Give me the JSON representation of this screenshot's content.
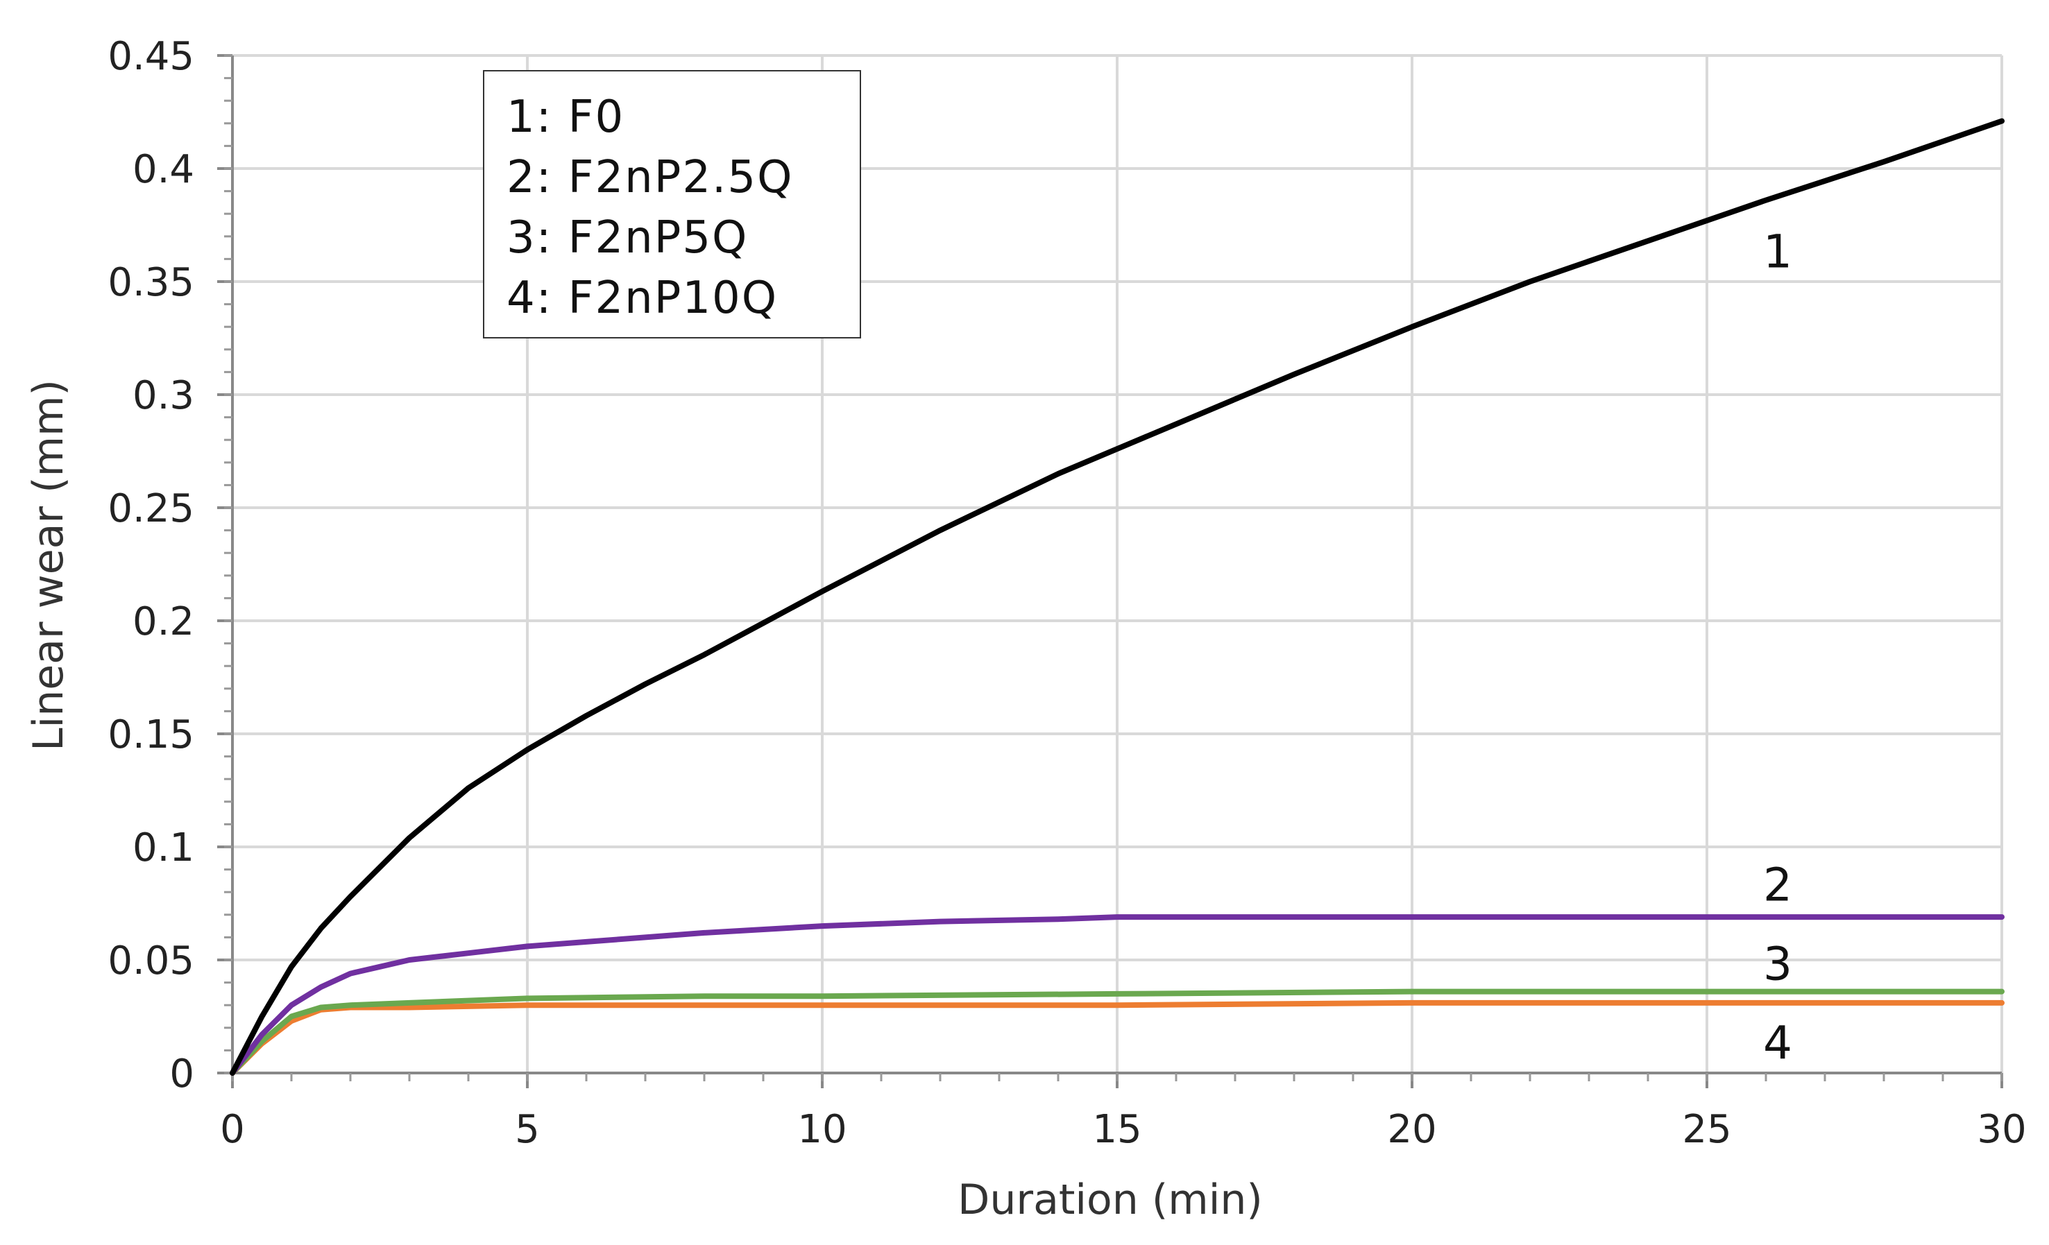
{
  "chart_data": {
    "type": "line",
    "title": "",
    "xlabel": "Duration (min)",
    "ylabel": "Linear wear (mm)",
    "xlim": [
      0,
      30
    ],
    "ylim": [
      0,
      0.45
    ],
    "xticks": [
      "0",
      "5",
      "10",
      "15",
      "20",
      "25",
      "30"
    ],
    "yticks": [
      "0",
      "0.05",
      "0.1",
      "0.15",
      "0.2",
      "0.25",
      "0.3",
      "0.35",
      "0.4",
      "0.45"
    ],
    "grid": true,
    "legend": {
      "placement": "top-left",
      "entries": [
        "1: F0",
        "2: F2nP2.5Q",
        "3: F2nP5Q",
        "4: F2nP10Q"
      ]
    },
    "series": [
      {
        "name": "1: F0",
        "label": "1",
        "color": "#000000",
        "x": [
          0,
          0.5,
          1,
          1.5,
          2,
          3,
          4,
          5,
          6,
          7,
          8,
          9,
          10,
          12,
          14,
          15,
          16,
          18,
          20,
          22,
          24,
          26,
          28,
          30
        ],
        "y": [
          0,
          0.025,
          0.047,
          0.064,
          0.078,
          0.104,
          0.126,
          0.143,
          0.158,
          0.172,
          0.185,
          0.199,
          0.213,
          0.24,
          0.265,
          0.276,
          0.287,
          0.309,
          0.33,
          0.35,
          0.368,
          0.386,
          0.403,
          0.421
        ]
      },
      {
        "name": "2: F2nP2.5Q",
        "label": "2",
        "color": "#7030a0",
        "x": [
          0,
          0.5,
          1,
          1.5,
          2,
          2.5,
          3,
          4,
          5,
          6,
          7,
          8,
          10,
          12,
          14,
          15,
          16,
          18,
          20,
          22,
          24,
          26,
          28,
          30
        ],
        "y": [
          0,
          0.017,
          0.03,
          0.038,
          0.044,
          0.047,
          0.05,
          0.053,
          0.056,
          0.058,
          0.06,
          0.062,
          0.065,
          0.067,
          0.068,
          0.069,
          0.069,
          0.069,
          0.069,
          0.069,
          0.069,
          0.069,
          0.069,
          0.069
        ]
      },
      {
        "name": "3: F2nP5Q",
        "label": "3",
        "color": "#6aa84f",
        "x": [
          0,
          0.5,
          1,
          1.5,
          2,
          3,
          5,
          8,
          10,
          15,
          20,
          25,
          30
        ],
        "y": [
          0,
          0.014,
          0.025,
          0.029,
          0.03,
          0.031,
          0.033,
          0.034,
          0.034,
          0.035,
          0.036,
          0.036,
          0.036
        ]
      },
      {
        "name": "4: F2nP10Q",
        "label": "4",
        "color": "#ed7d31",
        "x": [
          0,
          0.5,
          1,
          1.5,
          2,
          3,
          5,
          8,
          10,
          15,
          20,
          25,
          30
        ],
        "y": [
          0,
          0.013,
          0.023,
          0.028,
          0.029,
          0.029,
          0.03,
          0.03,
          0.03,
          0.03,
          0.031,
          0.031,
          0.031
        ]
      }
    ]
  }
}
